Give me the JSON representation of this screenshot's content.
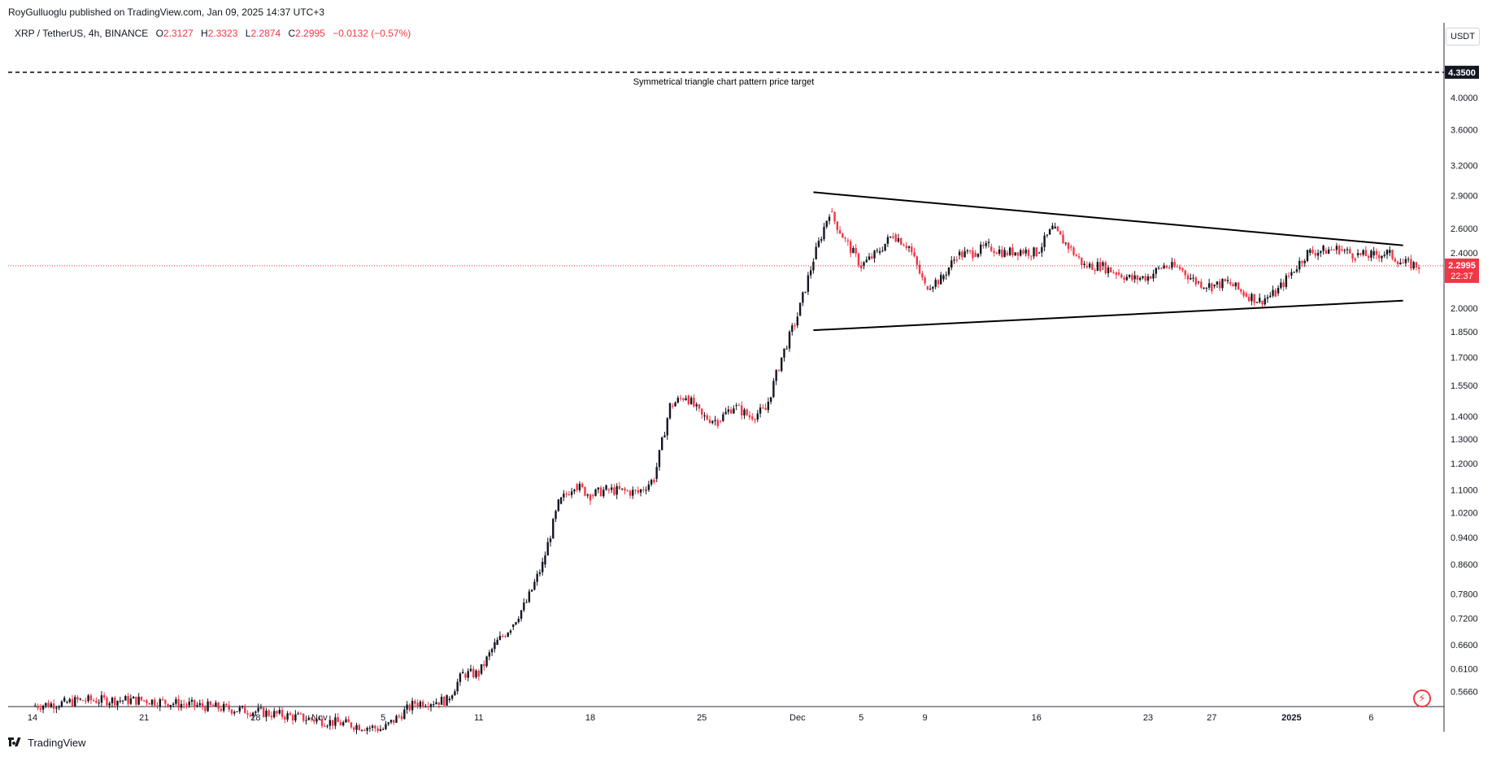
{
  "header": {
    "publish_line": "RoyGulluoglu published on TradingView.com, Jan 09, 2025 14:37 UTC+3"
  },
  "legend": {
    "symbol": "XRP / TetherUS, 4h, BINANCE",
    "open_label": "O",
    "open": "2.3127",
    "high_label": "H",
    "high": "2.3323",
    "low_label": "L",
    "low": "2.2874",
    "close_label": "C",
    "close": "2.2995",
    "change": "−0.0132 (−0.57%)"
  },
  "yaxis": {
    "currency": "USDT",
    "ticks": [
      "4.0000",
      "3.6000",
      "3.2000",
      "2.9000",
      "2.6000",
      "2.4000",
      "2.0000",
      "1.8500",
      "1.7000",
      "1.5500",
      "1.4000",
      "1.3000",
      "1.2000",
      "1.1000",
      "1.0200",
      "0.9400",
      "0.8600",
      "0.7800",
      "0.7200",
      "0.6600",
      "0.6100",
      "0.5660"
    ],
    "target_label": "4.3500",
    "current_price_label": "2.2995",
    "countdown_label": "22:37"
  },
  "xaxis": {
    "ticks": [
      "14",
      "21",
      "28",
      "Nov",
      "5",
      "11",
      "18",
      "25",
      "Dec",
      "5",
      "9",
      "16",
      "23",
      "27",
      "2025",
      "6"
    ]
  },
  "annotation": {
    "target_text": "Symmetrical triangle chart pattern price target"
  },
  "colors": {
    "up": "#131722",
    "down": "#f23645",
    "price_line": "#f23645",
    "trendline": "#000000",
    "axis_text": "#131722"
  },
  "footer": {
    "brand": "TradingView",
    "logo_icon": "tradingview-logo-icon"
  },
  "chart_data": {
    "type": "line",
    "title": "XRP / TetherUS, 4h, BINANCE",
    "scale": "log",
    "ylim": [
      0.54,
      4.75
    ],
    "x_ticks": [
      "14",
      "21",
      "28",
      "Nov",
      "5",
      "11",
      "18",
      "25",
      "Dec",
      "5",
      "9",
      "16",
      "23",
      "27",
      "2025",
      "6"
    ],
    "series": [
      {
        "name": "XRP / TetherUS",
        "points": [
          [
            "Oct 14",
            0.54
          ],
          [
            "Oct 16",
            0.545
          ],
          [
            "Oct 17",
            0.55
          ],
          [
            "Oct 21",
            0.55
          ],
          [
            "Oct 28",
            0.53
          ],
          [
            "Nov 5",
            0.5
          ],
          [
            "Nov 7",
            0.545
          ],
          [
            "Nov 9",
            0.55
          ],
          [
            "Nov 10",
            0.6
          ],
          [
            "Nov 11",
            0.6
          ],
          [
            "Nov 12",
            0.66
          ],
          [
            "Nov 13",
            0.7
          ],
          [
            "Nov 14",
            0.76
          ],
          [
            "Nov 15",
            0.86
          ],
          [
            "Nov 16",
            1.05
          ],
          [
            "Nov 17",
            1.12
          ],
          [
            "Nov 18",
            1.08
          ],
          [
            "Nov 19",
            1.1
          ],
          [
            "Nov 21",
            1.09
          ],
          [
            "Nov 22",
            1.14
          ],
          [
            "Nov 23",
            1.45
          ],
          [
            "Nov 24",
            1.5
          ],
          [
            "Nov 25",
            1.4
          ],
          [
            "Nov 26",
            1.38
          ],
          [
            "Nov 27",
            1.45
          ],
          [
            "Nov 28",
            1.4
          ],
          [
            "Nov 29",
            1.43
          ],
          [
            "Nov 30",
            1.7
          ],
          [
            "Dec 1",
            1.95
          ],
          [
            "Dec 2",
            2.35
          ],
          [
            "Dec 3",
            2.75
          ],
          [
            "Dec 4",
            2.5
          ],
          [
            "Dec 5",
            2.3
          ],
          [
            "Dec 6",
            2.4
          ],
          [
            "Dec 7",
            2.55
          ],
          [
            "Dec 8",
            2.45
          ],
          [
            "Dec 9",
            2.15
          ],
          [
            "Dec 10",
            2.2
          ],
          [
            "Dec 11",
            2.38
          ],
          [
            "Dec 12",
            2.4
          ],
          [
            "Dec 13",
            2.45
          ],
          [
            "Dec 14",
            2.4
          ],
          [
            "Dec 15",
            2.42
          ],
          [
            "Dec 16",
            2.4
          ],
          [
            "Dec 17",
            2.6
          ],
          [
            "Dec 18",
            2.45
          ],
          [
            "Dec 19",
            2.3
          ],
          [
            "Dec 20",
            2.3
          ],
          [
            "Dec 21",
            2.25
          ],
          [
            "Dec 22",
            2.2
          ],
          [
            "Dec 23",
            2.22
          ],
          [
            "Dec 24",
            2.3
          ],
          [
            "Dec 25",
            2.28
          ],
          [
            "Dec 26",
            2.18
          ],
          [
            "Dec 27",
            2.15
          ],
          [
            "Dec 28",
            2.18
          ],
          [
            "Dec 29",
            2.1
          ],
          [
            "Dec 30",
            2.05
          ],
          [
            "Dec 31",
            2.1
          ],
          [
            "Jan 1",
            2.25
          ],
          [
            "Jan 2",
            2.4
          ],
          [
            "Jan 3",
            2.42
          ],
          [
            "Jan 4",
            2.43
          ],
          [
            "Jan 5",
            2.38
          ],
          [
            "Jan 6",
            2.38
          ],
          [
            "Jan 7",
            2.4
          ],
          [
            "Jan 8",
            2.32
          ],
          [
            "Jan 9",
            2.2995
          ]
        ]
      }
    ],
    "levels": {
      "target_price": 4.35,
      "current_price": 2.2995
    },
    "trendlines": [
      {
        "name": "upper",
        "from": [
          "Dec 2",
          2.93
        ],
        "to": [
          "Jan 8",
          2.46
        ]
      },
      {
        "name": "lower",
        "from": [
          "Dec 2",
          1.86
        ],
        "to": [
          "Jan 8",
          2.05
        ]
      }
    ],
    "grid": false,
    "legend": "top-left"
  }
}
